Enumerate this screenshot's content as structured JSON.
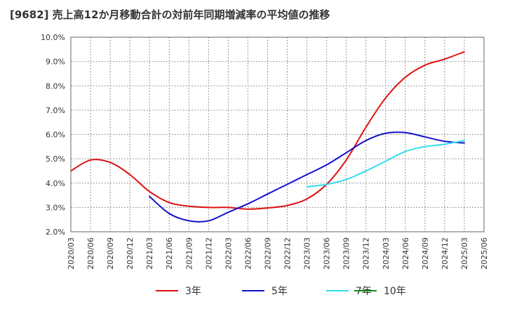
{
  "chart_data": {
    "type": "line",
    "title": "[9682]  売上高12か月移動合計の対前年同期増減率の平均値の推移",
    "xlabel": "",
    "ylabel": "",
    "x": [
      "2020/03",
      "2020/06",
      "2020/09",
      "2020/12",
      "2021/03",
      "2021/06",
      "2021/09",
      "2021/12",
      "2022/03",
      "2022/06",
      "2022/09",
      "2022/12",
      "2023/03",
      "2023/06",
      "2023/09",
      "2023/12",
      "2024/03",
      "2024/06",
      "2024/09",
      "2024/12",
      "2025/03",
      "2025/06"
    ],
    "y_ticks": [
      "2.0%",
      "3.0%",
      "4.0%",
      "5.0%",
      "6.0%",
      "7.0%",
      "8.0%",
      "9.0%",
      "10.0%"
    ],
    "ylim": [
      2.0,
      10.0
    ],
    "grid": true,
    "legend_position": "bottom",
    "series": [
      {
        "name": "3年",
        "color": "#dd1111",
        "values": [
          4.5,
          4.95,
          4.85,
          4.35,
          3.65,
          3.2,
          3.05,
          3.0,
          3.0,
          2.93,
          2.98,
          3.08,
          3.35,
          3.95,
          4.95,
          6.3,
          7.5,
          8.35,
          8.85,
          9.1,
          9.4,
          null
        ]
      },
      {
        "name": "5年",
        "color": "#1111cc",
        "values": [
          null,
          null,
          null,
          null,
          3.45,
          2.75,
          2.45,
          2.45,
          2.8,
          3.15,
          3.55,
          3.95,
          4.35,
          4.75,
          5.25,
          5.75,
          6.05,
          6.08,
          5.9,
          5.72,
          5.65,
          null
        ]
      },
      {
        "name": "7年",
        "color": "#33ddee",
        "values": [
          null,
          null,
          null,
          null,
          null,
          null,
          null,
          null,
          null,
          null,
          null,
          null,
          3.85,
          3.95,
          4.15,
          4.5,
          4.9,
          5.3,
          5.5,
          5.6,
          5.75,
          null
        ]
      },
      {
        "name": "10年",
        "color": "#118811",
        "values": [
          null,
          null,
          null,
          null,
          null,
          null,
          null,
          null,
          null,
          null,
          null,
          null,
          null,
          null,
          null,
          null,
          null,
          null,
          null,
          null,
          null,
          null
        ]
      }
    ]
  }
}
